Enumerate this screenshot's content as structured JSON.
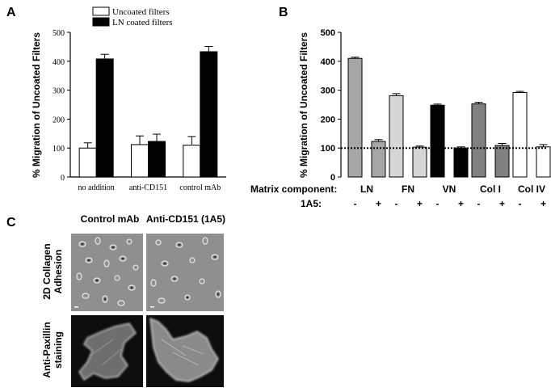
{
  "panels": {
    "a": {
      "letter": "A"
    },
    "b": {
      "letter": "B"
    },
    "c": {
      "letter": "C"
    }
  },
  "chart_data": [
    {
      "panel": "A",
      "type": "bar",
      "ylabel": "% Migration of Uncoated Filters",
      "xlabel": "",
      "ylim": [
        0,
        500
      ],
      "yticks": [
        0,
        100,
        200,
        300,
        400,
        500
      ],
      "categories": [
        "no addition",
        "anti-CD151",
        "control mAb"
      ],
      "legend_position": "top",
      "series": [
        {
          "name": "Uncoated filters",
          "color": "#ffffff",
          "values": [
            100,
            112,
            110
          ],
          "errors": [
            18,
            30,
            30
          ]
        },
        {
          "name": "LN coated filters",
          "color": "#000000",
          "values": [
            408,
            123,
            433
          ],
          "errors": [
            16,
            25,
            18
          ]
        }
      ]
    },
    {
      "panel": "B",
      "type": "bar",
      "ylabel": "% Migration of Uncoated Filters",
      "xlabel": "",
      "ylim": [
        0,
        500
      ],
      "yticks": [
        0,
        100,
        200,
        300,
        400,
        500
      ],
      "reference_line": 100,
      "row_labels": {
        "matrix": "Matrix component:",
        "antibody": "1A5:"
      },
      "groups": [
        {
          "label": "LN",
          "bars": [
            {
              "treatment": "-",
              "value": 410,
              "error": 4,
              "color": "#a6a6a6"
            },
            {
              "treatment": "+",
              "value": 123,
              "error": 6,
              "color": "#a6a6a6"
            }
          ]
        },
        {
          "label": "FN",
          "bars": [
            {
              "treatment": "-",
              "value": 281,
              "error": 7,
              "color": "#d6d6d6"
            },
            {
              "treatment": "+",
              "value": 103,
              "error": 4,
              "color": "#d6d6d6"
            }
          ]
        },
        {
          "label": "VN",
          "bars": [
            {
              "treatment": "-",
              "value": 248,
              "error": 4,
              "color": "#000000"
            },
            {
              "treatment": "+",
              "value": 100,
              "error": 4,
              "color": "#000000"
            }
          ]
        },
        {
          "label": "Col I",
          "bars": [
            {
              "treatment": "-",
              "value": 253,
              "error": 5,
              "color": "#808080"
            },
            {
              "treatment": "+",
              "value": 109,
              "error": 7,
              "color": "#808080"
            }
          ]
        },
        {
          "label": "Col IV",
          "bars": [
            {
              "treatment": "-",
              "value": 292,
              "error": 4,
              "color": "#ffffff"
            },
            {
              "treatment": "+",
              "value": 104,
              "error": 8,
              "color": "#ffffff"
            }
          ]
        }
      ]
    }
  ],
  "micrographs": {
    "columns": [
      "Control mAb",
      "Anti-CD151 (1A5)"
    ],
    "rows": [
      {
        "label_line1": "2D Collagen",
        "label_line2": "Adhesion",
        "background": "#8f8f8f"
      },
      {
        "label_line1": "Anti-Paxillin",
        "label_line2": "staining",
        "background": "#0d0d0d"
      }
    ]
  }
}
